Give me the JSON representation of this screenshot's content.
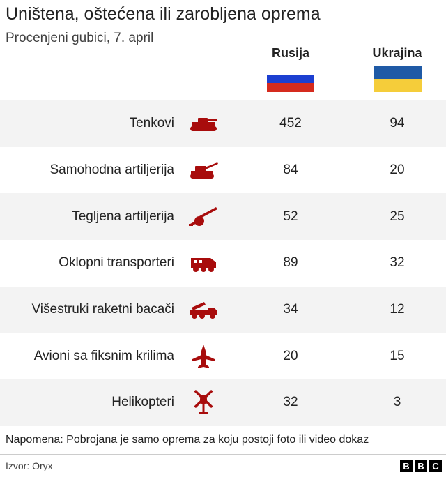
{
  "header": {
    "title": "Uništena, oštećena ili zarobljena oprema",
    "subtitle": "Procenjeni gubici, 7. april"
  },
  "columns": {
    "russia": "Rusija",
    "ukraine": "Ukrajina"
  },
  "flags": {
    "russia": [
      "#ffffff",
      "#1c3fd1",
      "#d52b1e"
    ],
    "ukraine": [
      "#1f5aa6",
      "#f5cd3a"
    ]
  },
  "colors": {
    "icon": "#a80c0c",
    "row_shade": "#f3f3f3"
  },
  "chart_data": {
    "type": "table",
    "title": "Uništena, oštećena ili zarobljena oprema",
    "subtitle": "Procenjeni gubici, 7. april",
    "columns": [
      "Rusija",
      "Ukrajina"
    ],
    "rows": [
      {
        "label": "Tenkovi",
        "icon": "tank-icon",
        "russia": "452",
        "ukraine": "94"
      },
      {
        "label": "Samohodna artiljerija",
        "icon": "self-propelled-artillery-icon",
        "russia": "84",
        "ukraine": "20"
      },
      {
        "label": "Tegljena artiljerija",
        "icon": "towed-artillery-icon",
        "russia": "52",
        "ukraine": "25"
      },
      {
        "label": "Oklopni transporteri",
        "icon": "armoured-carrier-icon",
        "russia": "89",
        "ukraine": "32"
      },
      {
        "label": "Višestruki raketni bacači",
        "icon": "rocket-launcher-icon",
        "russia": "34",
        "ukraine": "12"
      },
      {
        "label": "Avioni sa fiksnim krilima",
        "icon": "fixed-wing-aircraft-icon",
        "russia": "20",
        "ukraine": "15"
      },
      {
        "label": "Helikopteri",
        "icon": "helicopter-icon",
        "russia": "32",
        "ukraine": "3"
      }
    ]
  },
  "footer": {
    "note": "Napomena: Pobrojana je samo oprema za koju postoji foto ili video dokaz",
    "source": "Izvor: Oryx",
    "logo_letters": [
      "B",
      "B",
      "C"
    ]
  }
}
